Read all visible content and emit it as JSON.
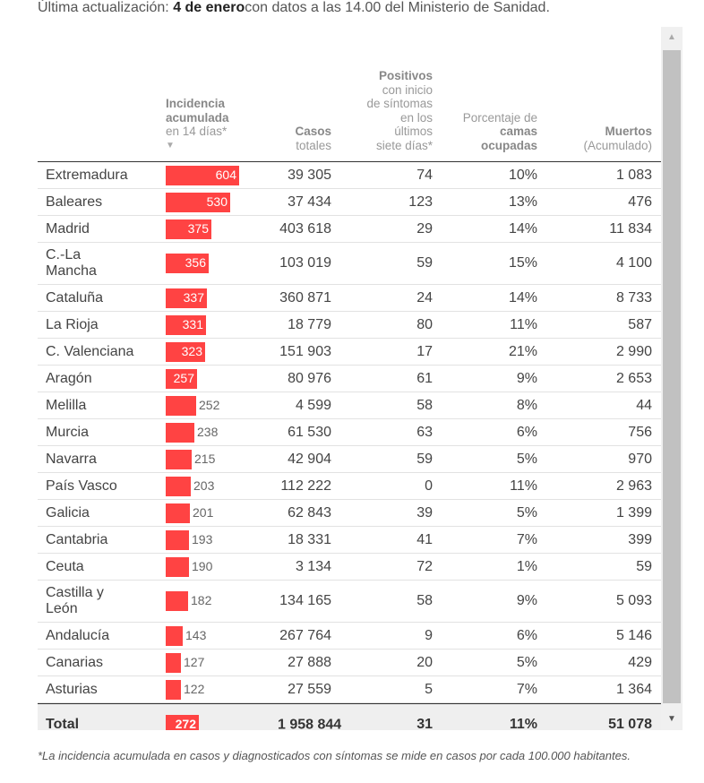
{
  "header": {
    "prefix": "Última actualización:",
    "date": "4 de enero",
    "suffix": "con datos a las 14.00 del Ministerio de Sanidad."
  },
  "columns": {
    "incidencia": {
      "strong": "Incidencia acumulada",
      "rest": "en 14 días*",
      "sort_icon": "sort-down-triangle"
    },
    "casos": {
      "strong": "Casos",
      "rest": "totales"
    },
    "positivos": {
      "strong": "Positivos",
      "rest": "con inicio de síntomas en los últimos siete días*"
    },
    "porcentaje": {
      "rest": "Porcentaje de",
      "strong": "camas ocupadas"
    },
    "muertos": {
      "strong": "Muertos",
      "rest": "(Acumulado)"
    }
  },
  "bar_color": "#ff4343",
  "incidence_max": 604,
  "rows": [
    {
      "name": "Extremadura",
      "incidencia": 604,
      "casos": "39 305",
      "positivos": "74",
      "porcentaje": "10%",
      "muertos": "1 083"
    },
    {
      "name": "Baleares",
      "incidencia": 530,
      "casos": "37 434",
      "positivos": "123",
      "porcentaje": "13%",
      "muertos": "476"
    },
    {
      "name": "Madrid",
      "incidencia": 375,
      "casos": "403 618",
      "positivos": "29",
      "porcentaje": "14%",
      "muertos": "11 834"
    },
    {
      "name": "C.-La Mancha",
      "incidencia": 356,
      "casos": "103 019",
      "positivos": "59",
      "porcentaje": "15%",
      "muertos": "4 100"
    },
    {
      "name": "Cataluña",
      "incidencia": 337,
      "casos": "360 871",
      "positivos": "24",
      "porcentaje": "14%",
      "muertos": "8 733"
    },
    {
      "name": "La Rioja",
      "incidencia": 331,
      "casos": "18 779",
      "positivos": "80",
      "porcentaje": "11%",
      "muertos": "587"
    },
    {
      "name": "C. Valenciana",
      "incidencia": 323,
      "casos": "151 903",
      "positivos": "17",
      "porcentaje": "21%",
      "muertos": "2 990"
    },
    {
      "name": "Aragón",
      "incidencia": 257,
      "casos": "80 976",
      "positivos": "61",
      "porcentaje": "9%",
      "muertos": "2 653"
    },
    {
      "name": "Melilla",
      "incidencia": 252,
      "casos": "4 599",
      "positivos": "58",
      "porcentaje": "8%",
      "muertos": "44"
    },
    {
      "name": "Murcia",
      "incidencia": 238,
      "casos": "61 530",
      "positivos": "63",
      "porcentaje": "6%",
      "muertos": "756"
    },
    {
      "name": "Navarra",
      "incidencia": 215,
      "casos": "42 904",
      "positivos": "59",
      "porcentaje": "5%",
      "muertos": "970"
    },
    {
      "name": "País Vasco",
      "incidencia": 203,
      "casos": "112 222",
      "positivos": "0",
      "porcentaje": "11%",
      "muertos": "2 963"
    },
    {
      "name": "Galicia",
      "incidencia": 201,
      "casos": "62 843",
      "positivos": "39",
      "porcentaje": "5%",
      "muertos": "1 399"
    },
    {
      "name": "Cantabria",
      "incidencia": 193,
      "casos": "18 331",
      "positivos": "41",
      "porcentaje": "7%",
      "muertos": "399"
    },
    {
      "name": "Ceuta",
      "incidencia": 190,
      "casos": "3 134",
      "positivos": "72",
      "porcentaje": "1%",
      "muertos": "59"
    },
    {
      "name": "Castilla y León",
      "incidencia": 182,
      "casos": "134 165",
      "positivos": "58",
      "porcentaje": "9%",
      "muertos": "5 093"
    },
    {
      "name": "Andalucía",
      "incidencia": 143,
      "casos": "267 764",
      "positivos": "9",
      "porcentaje": "6%",
      "muertos": "5 146"
    },
    {
      "name": "Canarias",
      "incidencia": 127,
      "casos": "27 888",
      "positivos": "20",
      "porcentaje": "5%",
      "muertos": "429"
    },
    {
      "name": "Asturias",
      "incidencia": 122,
      "casos": "27 559",
      "positivos": "5",
      "porcentaje": "7%",
      "muertos": "1 364"
    }
  ],
  "total": {
    "name": "Total",
    "incidencia": 272,
    "casos": "1 958 844",
    "positivos": "31",
    "porcentaje": "11%",
    "muertos": "51 078"
  },
  "footnote": "*La incidencia acumulada en casos y diagnosticados con síntomas se mide en casos por cada 100.000 habitantes.",
  "scrollbar": {
    "up_icon": "scroll-up-arrow",
    "down_icon": "scroll-down-arrow"
  }
}
